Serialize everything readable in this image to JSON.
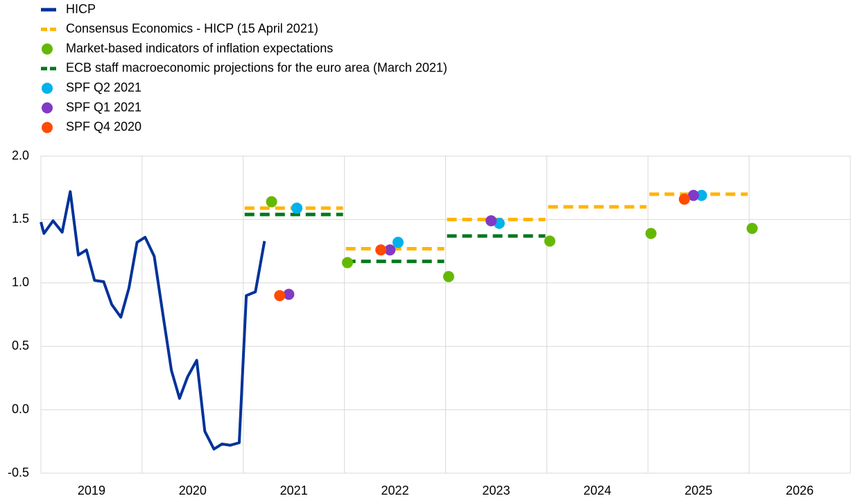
{
  "chart_data": {
    "type": "line",
    "xlim": [
      2019,
      2027
    ],
    "xticks": [
      {
        "value": 2019.5,
        "label": "2019"
      },
      {
        "value": 2020.5,
        "label": "2020"
      },
      {
        "value": 2021.5,
        "label": "2021"
      },
      {
        "value": 2022.5,
        "label": "2022"
      },
      {
        "value": 2023.5,
        "label": "2023"
      },
      {
        "value": 2024.5,
        "label": "2024"
      },
      {
        "value": 2025.5,
        "label": "2025"
      },
      {
        "value": 2026.5,
        "label": "2026"
      }
    ],
    "xgrid": [
      2020,
      2021,
      2022,
      2023,
      2024,
      2025,
      2026
    ],
    "ylim": [
      -0.5,
      2.0
    ],
    "yticks": [
      {
        "value": -0.5,
        "label": "-0.5"
      },
      {
        "value": 0,
        "label": "0.0"
      },
      {
        "value": 0.5,
        "label": "0.5"
      },
      {
        "value": 1,
        "label": "1.0"
      },
      {
        "value": 1.5,
        "label": "1.5"
      },
      {
        "value": 2,
        "label": "2.0"
      }
    ],
    "grid": true,
    "legend": "top-left",
    "series": [
      {
        "name": "HICP",
        "color": "#003299",
        "style": "line",
        "x": [
          2019.0,
          2019.03,
          2019.12,
          2019.21,
          2019.29,
          2019.37,
          2019.45,
          2019.53,
          2019.62,
          2019.7,
          2019.79,
          2019.87,
          2019.95,
          2020.03,
          2020.12,
          2020.21,
          2020.29,
          2020.37,
          2020.45,
          2020.54,
          2020.62,
          2020.71,
          2020.79,
          2020.87,
          2020.96,
          2021.03,
          2021.12,
          2021.21
        ],
        "values": [
          1.48,
          1.39,
          1.49,
          1.4,
          1.72,
          1.22,
          1.26,
          1.02,
          1.01,
          0.83,
          0.73,
          0.96,
          1.32,
          1.36,
          1.21,
          0.73,
          0.31,
          0.09,
          0.26,
          0.39,
          -0.17,
          -0.31,
          -0.27,
          -0.28,
          -0.26,
          0.9,
          0.93,
          1.33
        ]
      },
      {
        "name": "Consensus Economics - HICP (15 April 2021)",
        "color": "#ffb400",
        "style": "dash",
        "x": [
          2021,
          2022,
          2023,
          2024,
          2025
        ],
        "values": [
          1.59,
          1.27,
          1.5,
          1.6,
          1.7
        ]
      },
      {
        "name": "Market-based indicators of inflation expectations",
        "color": "#65b800",
        "style": "dot",
        "x": [
          2021.28,
          2022.03,
          2023.03,
          2024.03,
          2025.03,
          2026.03
        ],
        "values": [
          1.64,
          1.16,
          1.05,
          1.33,
          1.39,
          1.43
        ]
      },
      {
        "name": "ECB staff macroeconomic projections for the euro area (March 2021)",
        "color": "#00781e",
        "style": "dash",
        "x": [
          2021,
          2022,
          2023
        ],
        "values": [
          1.54,
          1.17,
          1.37
        ]
      },
      {
        "name": "SPF Q2 2021",
        "color": "#00b1ea",
        "style": "dot",
        "x": [
          2021.53,
          2022.53,
          2023.53,
          2025.53
        ],
        "values": [
          1.59,
          1.32,
          1.47,
          1.69
        ]
      },
      {
        "name": "SPF Q1 2021",
        "color": "#8139c6",
        "style": "dot",
        "x": [
          2021.45,
          2022.45,
          2023.45,
          2025.45
        ],
        "values": [
          0.91,
          1.26,
          1.49,
          1.69
        ]
      },
      {
        "name": "SPF Q4 2020",
        "color": "#ff4b00",
        "style": "dot",
        "x": [
          2021.36,
          2022.36,
          2025.36
        ],
        "values": [
          0.9,
          1.26,
          1.66
        ]
      }
    ]
  }
}
